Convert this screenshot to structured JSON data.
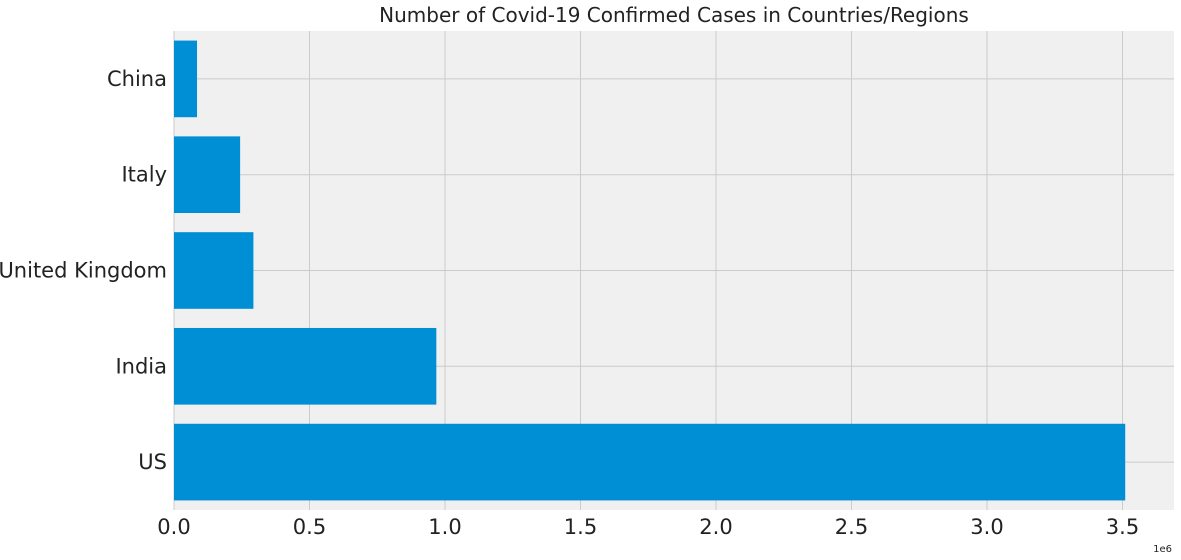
{
  "chart_data": {
    "type": "bar",
    "orientation": "horizontal",
    "title": "Number of Covid-19 Confirmed Cases in Countries/Regions",
    "categories": [
      "US",
      "India",
      "United Kingdom",
      "Italy",
      "China"
    ],
    "values": [
      3510000,
      968000,
      293000,
      244000,
      85000
    ],
    "xlabel": "",
    "ylabel": "",
    "xlim": [
      0,
      3690000
    ],
    "x_ticks": [
      0,
      500000,
      1000000,
      1500000,
      2000000,
      2500000,
      3000000,
      3500000
    ],
    "x_tick_labels": [
      "0.0",
      "0.5",
      "1.0",
      "1.5",
      "2.0",
      "2.5",
      "3.0",
      "3.5"
    ],
    "x_offset_label": "1e6",
    "grid": true,
    "colors": {
      "bar": "#008fd5",
      "plot_background": "#f0f0f0",
      "grid": "#cbcbcb"
    }
  }
}
